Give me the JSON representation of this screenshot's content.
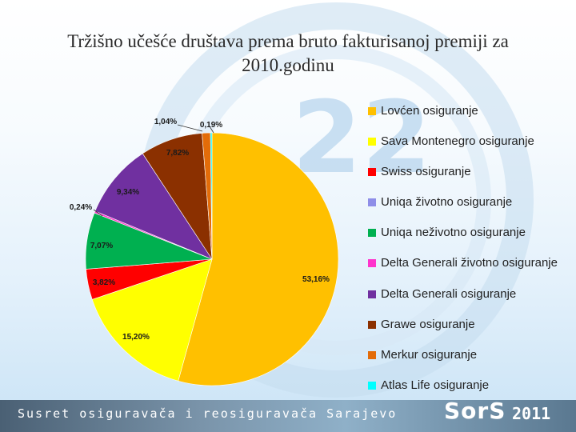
{
  "slide": {
    "title": "Tržišno učešće društava prema bruto fakturisanoj premiji za 2010.godinu",
    "background_number": "22",
    "footer_text": "Susret osiguravača i reosiguravača Sarajevo",
    "footer_logo": "SorS",
    "footer_year": "2011"
  },
  "chart_data": {
    "type": "pie",
    "title": "",
    "start_angle_deg": 0,
    "direction": "clockwise",
    "legend_position": "right",
    "slices": [
      {
        "name": "Lovćen osiguranje",
        "value": 53.16,
        "label": "53,16%",
        "color": "#FFC000"
      },
      {
        "name": "Sava Montenegro osiguranje",
        "value": 15.2,
        "label": "15,20%",
        "color": "#FFFF00"
      },
      {
        "name": "Swiss osiguranje",
        "value": 3.82,
        "label": "3,82%",
        "color": "#FF0000"
      },
      {
        "name": "Uniqa životno osiguranje",
        "value": 0.0,
        "label": "",
        "color": "#8E8EE8"
      },
      {
        "name": "Uniqa neživotno osiguranje",
        "value": 7.07,
        "label": "7,07%",
        "color": "#00B050"
      },
      {
        "name": "Delta Generali životno osiguranje",
        "value": 0.24,
        "label": "0,24%",
        "color": "#FF33CC"
      },
      {
        "name": "Delta Generali osiguranje",
        "value": 9.34,
        "label": "9,34%",
        "color": "#7030A0"
      },
      {
        "name": "Grawe osiguranje",
        "value": 7.82,
        "label": "7,82%",
        "color": "#8B3000"
      },
      {
        "name": "Merkur osiguranje",
        "value": 1.04,
        "label": "1,04%",
        "color": "#E36C09"
      },
      {
        "name": "Atlas Life osiguranje",
        "value": 0.19,
        "label": "0,19%",
        "color": "#00FFFF"
      }
    ]
  }
}
